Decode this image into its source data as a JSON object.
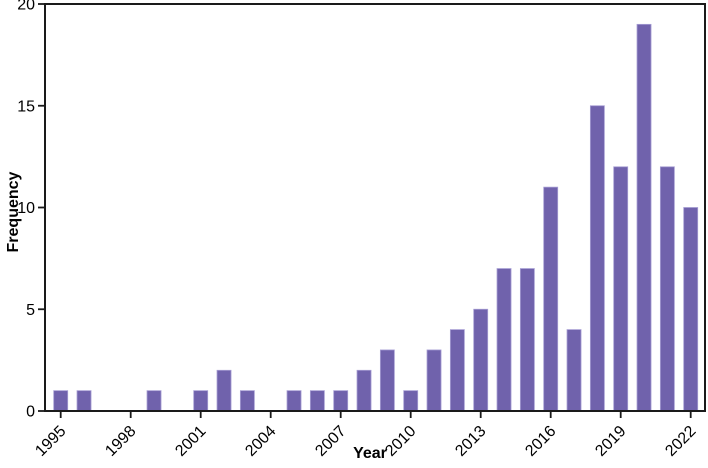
{
  "chart_data": {
    "type": "bar",
    "title": "",
    "xlabel": "Year",
    "ylabel": "Frequency",
    "categories": [
      1995,
      1996,
      1997,
      1998,
      1999,
      2000,
      2001,
      2002,
      2003,
      2004,
      2005,
      2006,
      2007,
      2008,
      2009,
      2010,
      2011,
      2012,
      2013,
      2014,
      2015,
      2016,
      2017,
      2018,
      2019,
      2020,
      2021,
      2022
    ],
    "values": [
      1,
      1,
      0,
      0,
      1,
      0,
      1,
      2,
      1,
      0,
      1,
      1,
      1,
      2,
      3,
      1,
      3,
      4,
      5,
      7,
      7,
      11,
      4,
      15,
      12,
      19,
      12,
      10
    ],
    "ylim": [
      0,
      20
    ],
    "yticks": [
      0,
      5,
      10,
      15,
      20
    ],
    "xtick_labels": [
      "1995",
      "1998",
      "2001",
      "2004",
      "2007",
      "2010",
      "2013",
      "2016",
      "2019",
      "2022"
    ],
    "xtick_step": 3,
    "xtick_rotation_deg": 45,
    "grid": false,
    "legend_position": "none",
    "bar_color": "#7062ac",
    "bar_edge_color": "#a69dd3",
    "axis_color": "#1a1a1a",
    "tick_label_color": "#000000",
    "background_color": "#ffffff"
  }
}
